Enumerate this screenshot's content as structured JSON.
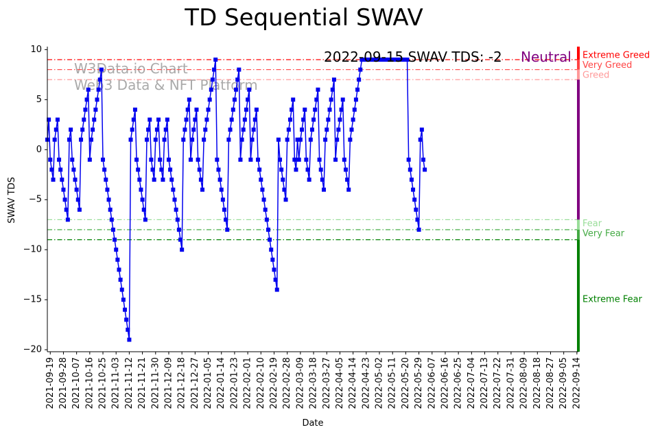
{
  "chart_data": {
    "type": "line",
    "title": "TD Sequential SWAV",
    "xlabel": "Date",
    "ylabel": "SWAV TDS",
    "ylim": [
      -20.2,
      10.3
    ],
    "y_ticks": [
      -20,
      -15,
      -10,
      -5,
      0,
      5,
      10
    ],
    "y_tick_labels": [
      "−20",
      "−15",
      "−10",
      "−5",
      "0",
      "5",
      "10"
    ],
    "x_start": "2021-09-17",
    "x_end": "2022-09-15",
    "x_tick_labels": [
      "2021-09-19",
      "2021-09-28",
      "2021-10-07",
      "2021-10-16",
      "2021-10-25",
      "2021-11-03",
      "2021-11-12",
      "2021-11-21",
      "2021-11-30",
      "2021-12-09",
      "2021-12-18",
      "2021-12-27",
      "2022-01-05",
      "2022-01-14",
      "2022-01-23",
      "2022-02-01",
      "2022-02-10",
      "2022-02-19",
      "2022-02-28",
      "2022-03-09",
      "2022-03-18",
      "2022-03-27",
      "2022-04-05",
      "2022-04-14",
      "2022-04-23",
      "2022-05-02",
      "2022-05-11",
      "2022-05-20",
      "2022-05-29",
      "2022-06-07",
      "2022-06-16",
      "2022-06-25",
      "2022-07-04",
      "2022-07-13",
      "2022-07-22",
      "2022-07-31",
      "2022-08-09",
      "2022-08-18",
      "2022-08-27",
      "2022-09-05",
      "2022-09-14"
    ],
    "series": [
      {
        "name": "SWAV TDS",
        "color": "#0000ee",
        "marker": "square",
        "values": [
          1,
          3,
          -1,
          -2,
          -3,
          1,
          2,
          3,
          -1,
          -2,
          -3,
          -4,
          -5,
          -6,
          -7,
          1,
          2,
          -1,
          -2,
          -3,
          -4,
          -5,
          -6,
          1,
          2,
          3,
          4,
          5,
          6,
          -1,
          1,
          2,
          3,
          4,
          5,
          6,
          7,
          8,
          -1,
          -2,
          -3,
          -4,
          -5,
          -6,
          -7,
          -8,
          -9,
          -10,
          -11,
          -12,
          -13,
          -14,
          -15,
          -16,
          -17,
          -18,
          -19,
          1,
          2,
          3,
          4,
          -1,
          -2,
          -3,
          -4,
          -5,
          -6,
          -7,
          1,
          2,
          3,
          -1,
          -2,
          -3,
          1,
          2,
          3,
          -1,
          -2,
          -3,
          1,
          2,
          3,
          -1,
          -2,
          -3,
          -4,
          -5,
          -6,
          -7,
          -8,
          -9,
          -10,
          1,
          2,
          3,
          4,
          5,
          -1,
          1,
          2,
          3,
          4,
          -1,
          -2,
          -3,
          -4,
          1,
          2,
          3,
          4,
          5,
          6,
          7,
          8,
          9,
          -1,
          -2,
          -3,
          -4,
          -5,
          -6,
          -7,
          -8,
          1,
          2,
          3,
          4,
          5,
          6,
          7,
          8,
          -1,
          1,
          2,
          3,
          4,
          5,
          6,
          -1,
          1,
          2,
          3,
          4,
          -1,
          -2,
          -3,
          -4,
          -5,
          -6,
          -7,
          -8,
          -9,
          -10,
          -11,
          -12,
          -13,
          -14,
          1,
          -1,
          -2,
          -3,
          -4,
          -5,
          1,
          2,
          3,
          4,
          5,
          -1,
          -2,
          1,
          -1,
          1,
          2,
          3,
          4,
          -1,
          -2,
          -3,
          1,
          2,
          3,
          4,
          5,
          6,
          -1,
          -2,
          -3,
          -4,
          1,
          2,
          3,
          4,
          5,
          6,
          7,
          -1,
          1,
          2,
          3,
          4,
          5,
          -1,
          -2,
          -3,
          -4,
          1,
          2,
          3,
          4,
          5,
          6,
          7,
          8,
          9,
          9,
          9,
          9,
          9,
          9,
          9,
          9,
          9,
          9,
          9,
          9,
          9,
          9,
          9,
          9,
          9,
          9,
          9,
          9,
          9,
          9,
          9,
          9,
          9,
          9,
          9,
          9,
          9,
          9,
          9,
          9,
          -1,
          -2,
          -3,
          -4,
          -5,
          -6,
          -7,
          -8,
          1,
          2,
          -1,
          -2
        ]
      }
    ],
    "thresholds": [
      {
        "name": "Extreme Greed",
        "value": 9,
        "color": "#ff0000",
        "bar_color": "#ff0000"
      },
      {
        "name": "Very Greed",
        "value": 8,
        "color": "#ff4444",
        "bar_color": "#ff4444"
      },
      {
        "name": "Greed",
        "value": 7,
        "color": "#ff9999",
        "bar_color": "#ff9999"
      },
      {
        "name": "Fear",
        "value": -7,
        "color": "#99dd99",
        "bar_color": "#99dd99"
      },
      {
        "name": "Very Fear",
        "value": -8,
        "color": "#44aa44",
        "bar_color": "#44aa44"
      },
      {
        "name": "Extreme Fear",
        "value": -9,
        "color": "#008000",
        "bar_color": "#008000"
      }
    ],
    "neutral_color": "#800080",
    "extreme_fear_label_value": -15,
    "annotation": "2022-09-15 SWAV TDS: -2",
    "mood": "Neutral",
    "watermark": [
      "W3Data.io Chart",
      "Web3 Data & NFT Platform"
    ],
    "grid": false
  }
}
